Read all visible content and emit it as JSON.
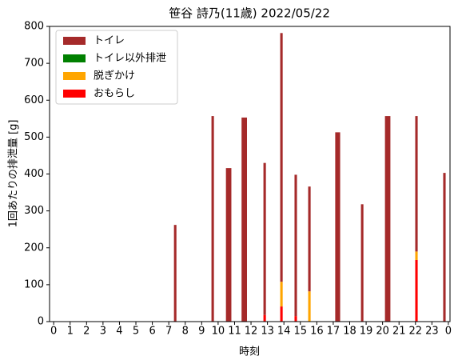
{
  "chart_data": {
    "type": "bar",
    "title": "笹谷 詩乃(11歳) 2022/05/22",
    "xlabel": "時刻",
    "ylabel": "1回あたりの排泄量 [g]",
    "x": [
      7.39,
      9.67,
      10.64,
      11.59,
      12.83,
      13.85,
      14.72,
      15.55,
      17.27,
      18.76,
      20.31,
      22.06,
      23.76
    ],
    "widths": [
      0.15,
      0.15,
      0.33,
      0.33,
      0.15,
      0.15,
      0.15,
      0.15,
      0.3,
      0.15,
      0.33,
      0.15,
      0.15
    ],
    "series": [
      {
        "name": "おもらし",
        "color": "#ff0000",
        "values": [
          0,
          0,
          0,
          0,
          18,
          41,
          15,
          0,
          0,
          0,
          0,
          167,
          0
        ]
      },
      {
        "name": "脱ぎかけ",
        "color": "#ffa500",
        "values": [
          0,
          0,
          0,
          0,
          0,
          67,
          0,
          82,
          0,
          0,
          0,
          23,
          0
        ]
      },
      {
        "name": "トイレ以外排泄",
        "color": "#008000",
        "values": [
          0,
          0,
          0,
          0,
          0,
          0,
          0,
          0,
          0,
          0,
          0,
          0,
          0
        ]
      },
      {
        "name": "トイレ",
        "color": "#a52a2a",
        "values": [
          262,
          557,
          416,
          553,
          412,
          674,
          383,
          284,
          513,
          318,
          557,
          367,
          403
        ]
      }
    ],
    "xlim": [
      -0.25,
      24.1
    ],
    "xticks": [
      0,
      1,
      2,
      3,
      4,
      5,
      6,
      7,
      8,
      9,
      10,
      11,
      12,
      13,
      14,
      15,
      16,
      17,
      18,
      19,
      20,
      21,
      22,
      23,
      {
        "value": 24,
        "label": "0"
      }
    ],
    "ylim": [
      0,
      800
    ],
    "yticks": [
      0,
      100,
      200,
      300,
      400,
      500,
      600,
      700,
      800
    ],
    "legend": "upper left"
  }
}
